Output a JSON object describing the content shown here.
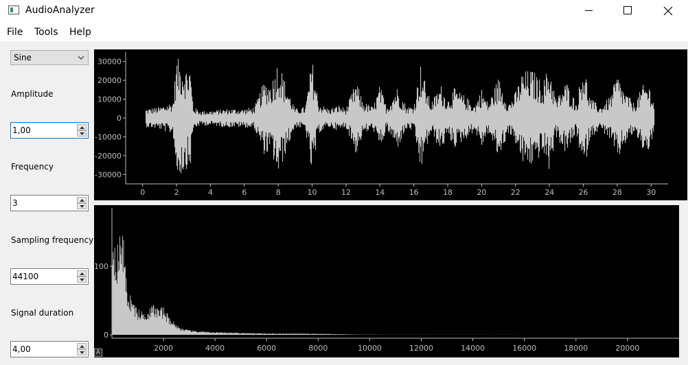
{
  "window": {
    "title": "AudioAnalyzer"
  },
  "menu": [
    {
      "label": "File"
    },
    {
      "label": "Tools"
    },
    {
      "label": "Help"
    }
  ],
  "controls": {
    "signal_type": "Sine",
    "amplitude_label": "Amplitude",
    "amplitude_value": "1,00",
    "frequency_label": "Frequency",
    "frequency_value": "3",
    "sampling_label": "Sampling frequency",
    "sampling_value": "44100",
    "duration_label": "Signal duration",
    "duration_value": "4,00"
  },
  "plot_corner_label": "A",
  "colors": {
    "plot_bg": "#000000",
    "trace": "#c8c8c8",
    "axis": "#bfbfbf"
  },
  "chart_data": [
    {
      "type": "line",
      "title": "",
      "xlabel": "",
      "ylabel": "",
      "xlim": [
        -1,
        31
      ],
      "ylim": [
        -35000,
        35000
      ],
      "x_ticks": [
        0,
        2,
        4,
        6,
        8,
        10,
        12,
        14,
        16,
        18,
        20,
        22,
        24,
        26,
        28,
        30
      ],
      "y_ticks": [
        30000,
        20000,
        10000,
        0,
        -10000,
        -20000,
        -30000
      ],
      "series": [
        {
          "envelope_x": [
            0.2,
            1.0,
            1.8,
            2.0,
            2.2,
            2.4,
            2.6,
            2.8,
            3.0,
            3.4,
            4.0,
            5.0,
            6.0,
            6.6,
            7.0,
            7.2,
            7.6,
            8.0,
            8.4,
            9.0,
            9.6,
            10.0,
            10.4,
            11.0,
            11.6,
            12.0,
            12.6,
            13.0,
            13.6,
            14.0,
            14.4,
            15.0,
            15.6,
            16.0,
            16.4,
            17.0,
            17.6,
            18.0,
            18.4,
            19.0,
            19.6,
            20.0,
            20.4,
            21.0,
            21.6,
            22.0,
            22.4,
            23.0,
            23.6,
            24.0,
            24.4,
            25.0,
            25.6,
            26.0,
            26.4,
            27.0,
            27.6,
            28.0,
            28.4,
            29.0,
            29.6,
            30.0,
            30.2
          ],
          "envelope_y": [
            5000,
            6000,
            9000,
            32000,
            31000,
            30000,
            27000,
            29000,
            6000,
            4000,
            4000,
            5000,
            5000,
            6000,
            16000,
            20000,
            19000,
            32000,
            20000,
            5000,
            6000,
            32000,
            8000,
            5000,
            7000,
            5000,
            20000,
            9000,
            6000,
            18000,
            6000,
            17000,
            6000,
            7000,
            29000,
            8000,
            18000,
            10000,
            16000,
            12000,
            7000,
            16000,
            8000,
            22000,
            8000,
            14000,
            25000,
            26000,
            19000,
            29000,
            10000,
            20000,
            8000,
            31000,
            11000,
            6000,
            12000,
            24000,
            15000,
            8000,
            19000,
            17000,
            6000
          ]
        }
      ]
    },
    {
      "type": "area",
      "title": "",
      "xlabel": "",
      "ylabel": "",
      "xlim": [
        0,
        22000
      ],
      "ylim": [
        -5,
        185
      ],
      "x_ticks": [
        2000,
        4000,
        6000,
        8000,
        10000,
        12000,
        14000,
        16000,
        18000,
        20000
      ],
      "y_ticks": [
        100,
        0
      ],
      "series": [
        {
          "x": [
            0,
            100,
            200,
            300,
            400,
            500,
            600,
            700,
            800,
            900,
            1000,
            1200,
            1400,
            1600,
            1800,
            2000,
            2200,
            2400,
            2600,
            2800,
            3000,
            3500,
            4000,
            5000,
            6000,
            7000,
            8000,
            8500,
            9000,
            9500,
            10000,
            11000,
            22000
          ],
          "y": [
            165,
            150,
            130,
            145,
            180,
            110,
            70,
            60,
            55,
            45,
            38,
            35,
            38,
            45,
            40,
            42,
            28,
            20,
            12,
            9,
            7,
            5,
            4,
            3,
            2,
            2,
            1.5,
            1.2,
            0.8,
            0.4,
            0.2,
            0.1,
            0
          ]
        }
      ]
    }
  ]
}
